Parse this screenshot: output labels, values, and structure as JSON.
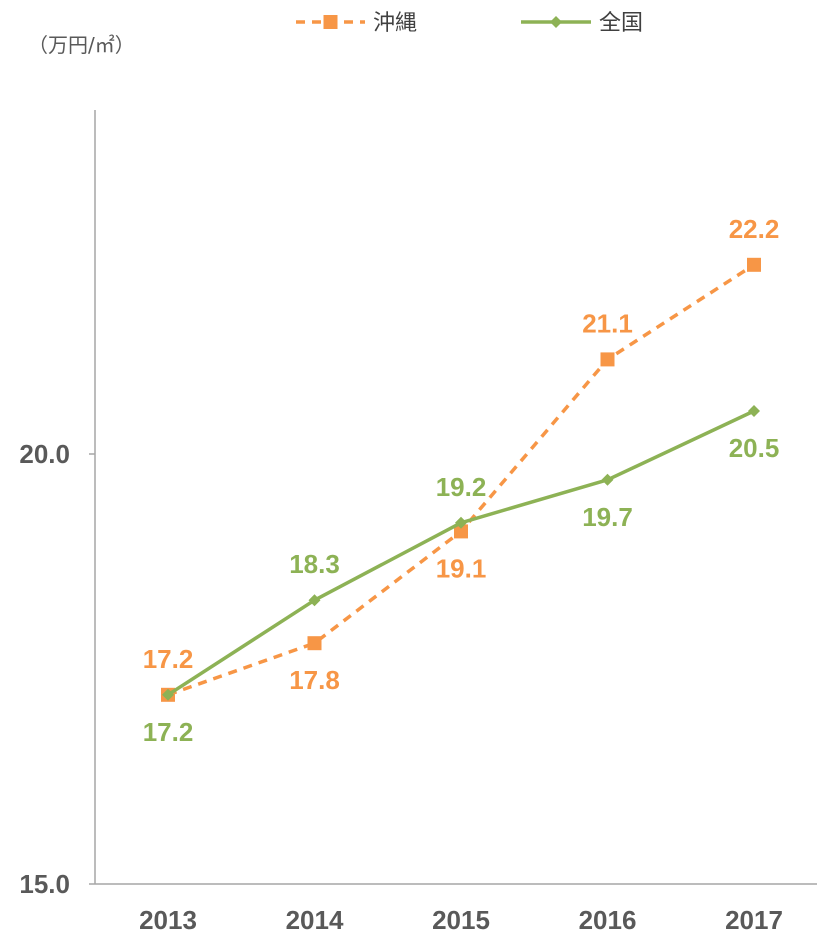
{
  "chart_data": {
    "type": "line",
    "unit_label": "（万円/㎡）",
    "categories": [
      "2013",
      "2014",
      "2015",
      "2016",
      "2017"
    ],
    "ylim": [
      15.0,
      24.0
    ],
    "y_ticks": [
      "20.0",
      "15.0"
    ],
    "y_tick_values": [
      20.0,
      15.0
    ],
    "legend_position": "top-center",
    "grid": false,
    "series": [
      {
        "name": "沖縄",
        "color": "#F79646",
        "style": "dashed",
        "marker": "square",
        "values": [
          17.2,
          17.8,
          19.1,
          21.1,
          22.2
        ],
        "labels": [
          "17.2",
          "17.8",
          "19.1",
          "21.1",
          "22.2"
        ],
        "label_positions": [
          "above",
          "below",
          "below",
          "above",
          "above"
        ]
      },
      {
        "name": "全国",
        "color": "#8DB255",
        "style": "solid",
        "marker": "diamond",
        "values": [
          17.2,
          18.3,
          19.2,
          19.7,
          20.5
        ],
        "labels": [
          "17.2",
          "18.3",
          "19.2",
          "19.7",
          "20.5"
        ],
        "label_positions": [
          "below",
          "above",
          "above",
          "below",
          "below"
        ]
      }
    ]
  }
}
